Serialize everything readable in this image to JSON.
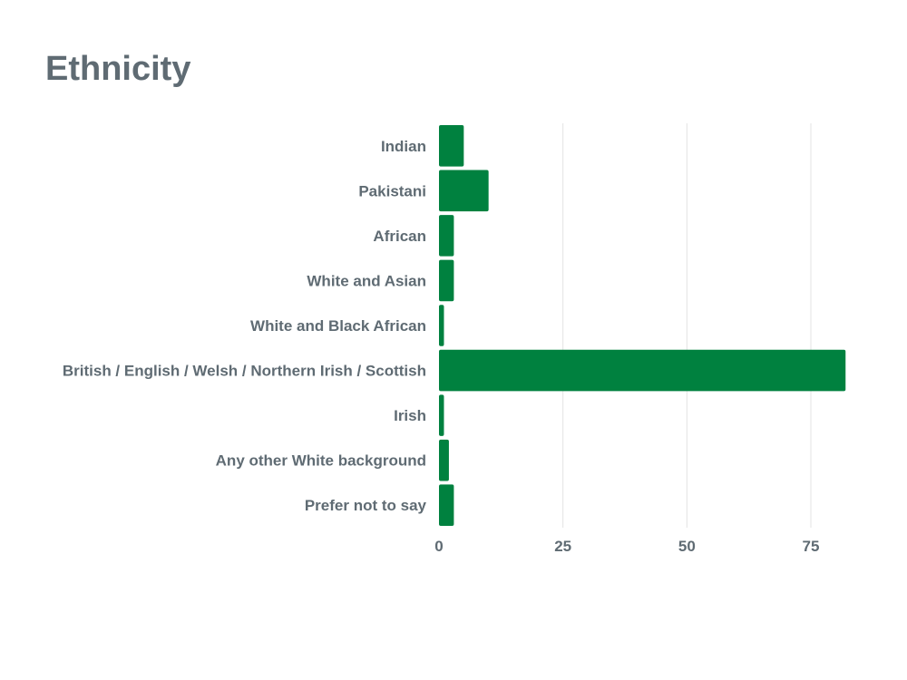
{
  "chart_data": {
    "type": "bar",
    "orientation": "horizontal",
    "title": "Ethnicity",
    "xlabel": "",
    "ylabel": "",
    "categories": [
      "Indian",
      "Pakistani",
      "African",
      "White and Asian",
      "White and Black African",
      "British / English / Welsh / Northern Irish / Scottish",
      "Irish",
      "Any other White background",
      "Prefer not to say"
    ],
    "values": [
      5,
      10,
      3,
      3,
      1,
      82,
      1,
      2,
      3
    ],
    "xlim": [
      0,
      85
    ],
    "xticks": [
      0,
      25,
      50,
      75
    ],
    "grid": "vertical",
    "legend": "none",
    "bar_color": "#00813f",
    "grid_color": "#e3e3e3",
    "text_color": "#5f6b73"
  }
}
